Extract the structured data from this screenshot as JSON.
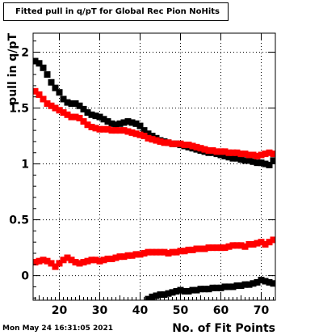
{
  "title": "Fitted pull in q/pT for Global Rec Pion NoHits",
  "timestamp": "Mon May 24 16:31:05 2021",
  "chart_data": {
    "type": "scatter",
    "title": "Fitted pull in q/pT for Global Rec Pion NoHits",
    "xlabel": "No. of Fit Points",
    "ylabel": "pull in q/pT",
    "xlim": [
      13.5,
      73.5
    ],
    "ylim": [
      -0.22,
      2.17
    ],
    "xticks": [
      20,
      30,
      40,
      50,
      60,
      70
    ],
    "yticks": [
      0,
      0.5,
      1,
      1.5,
      2
    ],
    "ytick_labels": [
      "0",
      "0.5",
      "1",
      "1.5",
      "2"
    ],
    "grid": true,
    "marker": "square",
    "series": [
      {
        "color": "#000000",
        "x": [
          14,
          15,
          16,
          17,
          18,
          19,
          20,
          21,
          22,
          23,
          24,
          25,
          26,
          27,
          28,
          29,
          30,
          31,
          32,
          33,
          34,
          35,
          36,
          37,
          38,
          39,
          40,
          41,
          42,
          43,
          44,
          45,
          46,
          47,
          48,
          49,
          50,
          51,
          52,
          53,
          54,
          55,
          56,
          57,
          58,
          59,
          60,
          61,
          62,
          63,
          64,
          65,
          66,
          67,
          68,
          69,
          70,
          71,
          72,
          73
        ],
        "y": [
          1.92,
          1.9,
          1.86,
          1.8,
          1.73,
          1.68,
          1.64,
          1.58,
          1.55,
          1.54,
          1.54,
          1.52,
          1.49,
          1.46,
          1.44,
          1.43,
          1.42,
          1.4,
          1.38,
          1.36,
          1.35,
          1.36,
          1.37,
          1.38,
          1.37,
          1.36,
          1.34,
          1.3,
          1.27,
          1.25,
          1.23,
          1.21,
          1.2,
          1.19,
          1.18,
          1.18,
          1.17,
          1.16,
          1.15,
          1.14,
          1.13,
          1.12,
          1.11,
          1.1,
          1.1,
          1.09,
          1.08,
          1.07,
          1.06,
          1.05,
          1.05,
          1.04,
          1.03,
          1.03,
          1.02,
          1.01,
          1.01,
          1.0,
          0.99,
          1.03
        ]
      },
      {
        "color": "#ff0000",
        "x": [
          14,
          15,
          16,
          17,
          18,
          19,
          20,
          21,
          22,
          23,
          24,
          25,
          26,
          27,
          28,
          29,
          30,
          31,
          32,
          33,
          34,
          35,
          36,
          37,
          38,
          39,
          40,
          41,
          42,
          43,
          44,
          45,
          46,
          47,
          48,
          49,
          50,
          51,
          52,
          53,
          54,
          55,
          56,
          57,
          58,
          59,
          60,
          61,
          62,
          63,
          64,
          65,
          66,
          67,
          68,
          69,
          70,
          71,
          72,
          73
        ],
        "y": [
          1.65,
          1.62,
          1.58,
          1.54,
          1.52,
          1.5,
          1.48,
          1.46,
          1.44,
          1.42,
          1.42,
          1.41,
          1.38,
          1.35,
          1.33,
          1.32,
          1.31,
          1.31,
          1.31,
          1.3,
          1.3,
          1.3,
          1.3,
          1.29,
          1.28,
          1.27,
          1.26,
          1.25,
          1.23,
          1.22,
          1.21,
          1.2,
          1.19,
          1.19,
          1.18,
          1.18,
          1.18,
          1.17,
          1.17,
          1.16,
          1.15,
          1.14,
          1.13,
          1.12,
          1.12,
          1.11,
          1.11,
          1.11,
          1.1,
          1.1,
          1.1,
          1.09,
          1.09,
          1.08,
          1.08,
          1.07,
          1.08,
          1.09,
          1.1,
          1.09
        ]
      },
      {
        "color": "#ff0000",
        "x": [
          14,
          15,
          16,
          17,
          18,
          19,
          20,
          21,
          22,
          23,
          24,
          25,
          26,
          27,
          28,
          29,
          30,
          31,
          32,
          33,
          34,
          35,
          36,
          37,
          38,
          39,
          40,
          41,
          42,
          43,
          44,
          45,
          46,
          47,
          48,
          49,
          50,
          51,
          52,
          53,
          54,
          55,
          56,
          57,
          58,
          59,
          60,
          61,
          62,
          63,
          64,
          65,
          66,
          67,
          68,
          69,
          70,
          71,
          72,
          73
        ],
        "y": [
          0.12,
          0.13,
          0.14,
          0.13,
          0.11,
          0.08,
          0.11,
          0.14,
          0.16,
          0.14,
          0.12,
          0.11,
          0.12,
          0.13,
          0.14,
          0.14,
          0.13,
          0.14,
          0.15,
          0.15,
          0.16,
          0.17,
          0.17,
          0.18,
          0.18,
          0.19,
          0.19,
          0.2,
          0.21,
          0.21,
          0.21,
          0.21,
          0.21,
          0.2,
          0.21,
          0.21,
          0.22,
          0.22,
          0.23,
          0.23,
          0.24,
          0.24,
          0.24,
          0.25,
          0.25,
          0.25,
          0.25,
          0.25,
          0.26,
          0.27,
          0.27,
          0.27,
          0.26,
          0.28,
          0.28,
          0.29,
          0.3,
          0.28,
          0.3,
          0.32
        ]
      },
      {
        "color": "#000000",
        "x": [
          42,
          43,
          44,
          45,
          46,
          47,
          48,
          49,
          50,
          51,
          52,
          53,
          54,
          55,
          56,
          57,
          58,
          59,
          60,
          61,
          62,
          63,
          64,
          65,
          66,
          67,
          68,
          69,
          70,
          71,
          72,
          73
        ],
        "y": [
          -0.21,
          -0.19,
          -0.18,
          -0.17,
          -0.17,
          -0.16,
          -0.15,
          -0.14,
          -0.13,
          -0.14,
          -0.14,
          -0.13,
          -0.13,
          -0.12,
          -0.12,
          -0.12,
          -0.11,
          -0.11,
          -0.11,
          -0.1,
          -0.1,
          -0.1,
          -0.09,
          -0.09,
          -0.08,
          -0.08,
          -0.07,
          -0.06,
          -0.04,
          -0.05,
          -0.06,
          -0.07
        ]
      }
    ]
  }
}
